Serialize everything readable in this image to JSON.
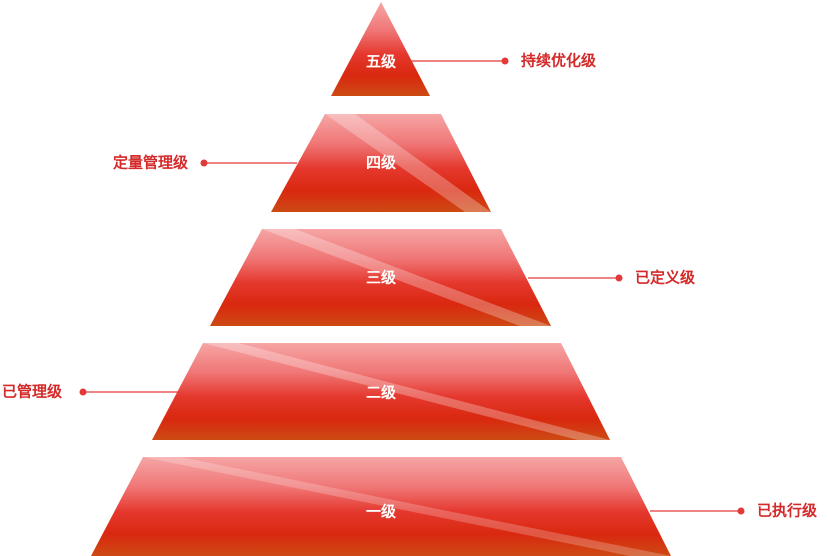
{
  "levels": [
    {
      "label": "五级",
      "tier": 5
    },
    {
      "label": "四级",
      "tier": 4
    },
    {
      "label": "三级",
      "tier": 3
    },
    {
      "label": "二级",
      "tier": 2
    },
    {
      "label": "一级",
      "tier": 1
    }
  ],
  "annotations": [
    {
      "text": "持续优化级",
      "level": 5,
      "side": "right"
    },
    {
      "text": "定量管理级",
      "level": 4,
      "side": "left"
    },
    {
      "text": "已定义级",
      "level": 3,
      "side": "right"
    },
    {
      "text": "已管理级",
      "level": 2,
      "side": "left"
    },
    {
      "text": "已执行级",
      "level": 1,
      "side": "right"
    }
  ],
  "colors": {
    "top": "#f6a5a5",
    "upper": "#f07777",
    "middle": "#e5392f",
    "lower": "#d9280f",
    "base": "#cd4a14",
    "accent": "#d42a2a"
  }
}
